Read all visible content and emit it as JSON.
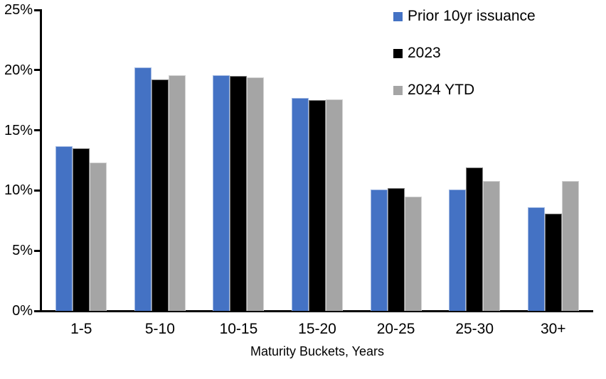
{
  "chart_data": {
    "type": "bar",
    "title": "",
    "xlabel": "Maturity Buckets, Years",
    "ylabel": "",
    "ylim": [
      0,
      25
    ],
    "y_tick_values": [
      0,
      5,
      10,
      15,
      20,
      25
    ],
    "y_tick_labels": [
      "0%",
      "5%",
      "10%",
      "15%",
      "20%",
      "25%"
    ],
    "grid": false,
    "legend_position": "top-right",
    "categories": [
      "1-5",
      "5-10",
      "10-15",
      "15-20",
      "20-25",
      "25-30",
      "30+"
    ],
    "series": [
      {
        "name": "Prior 10yr issuance",
        "color": "#4472C4",
        "values": [
          13.7,
          20.2,
          19.6,
          17.7,
          10.1,
          10.1,
          8.6
        ]
      },
      {
        "name": "2023",
        "color": "#000000",
        "values": [
          13.5,
          19.2,
          19.5,
          17.5,
          10.2,
          11.9,
          8.1
        ]
      },
      {
        "name": "2024 YTD",
        "color": "#A5A5A5",
        "values": [
          12.3,
          19.6,
          19.4,
          17.6,
          9.5,
          10.8,
          10.8
        ]
      }
    ]
  }
}
